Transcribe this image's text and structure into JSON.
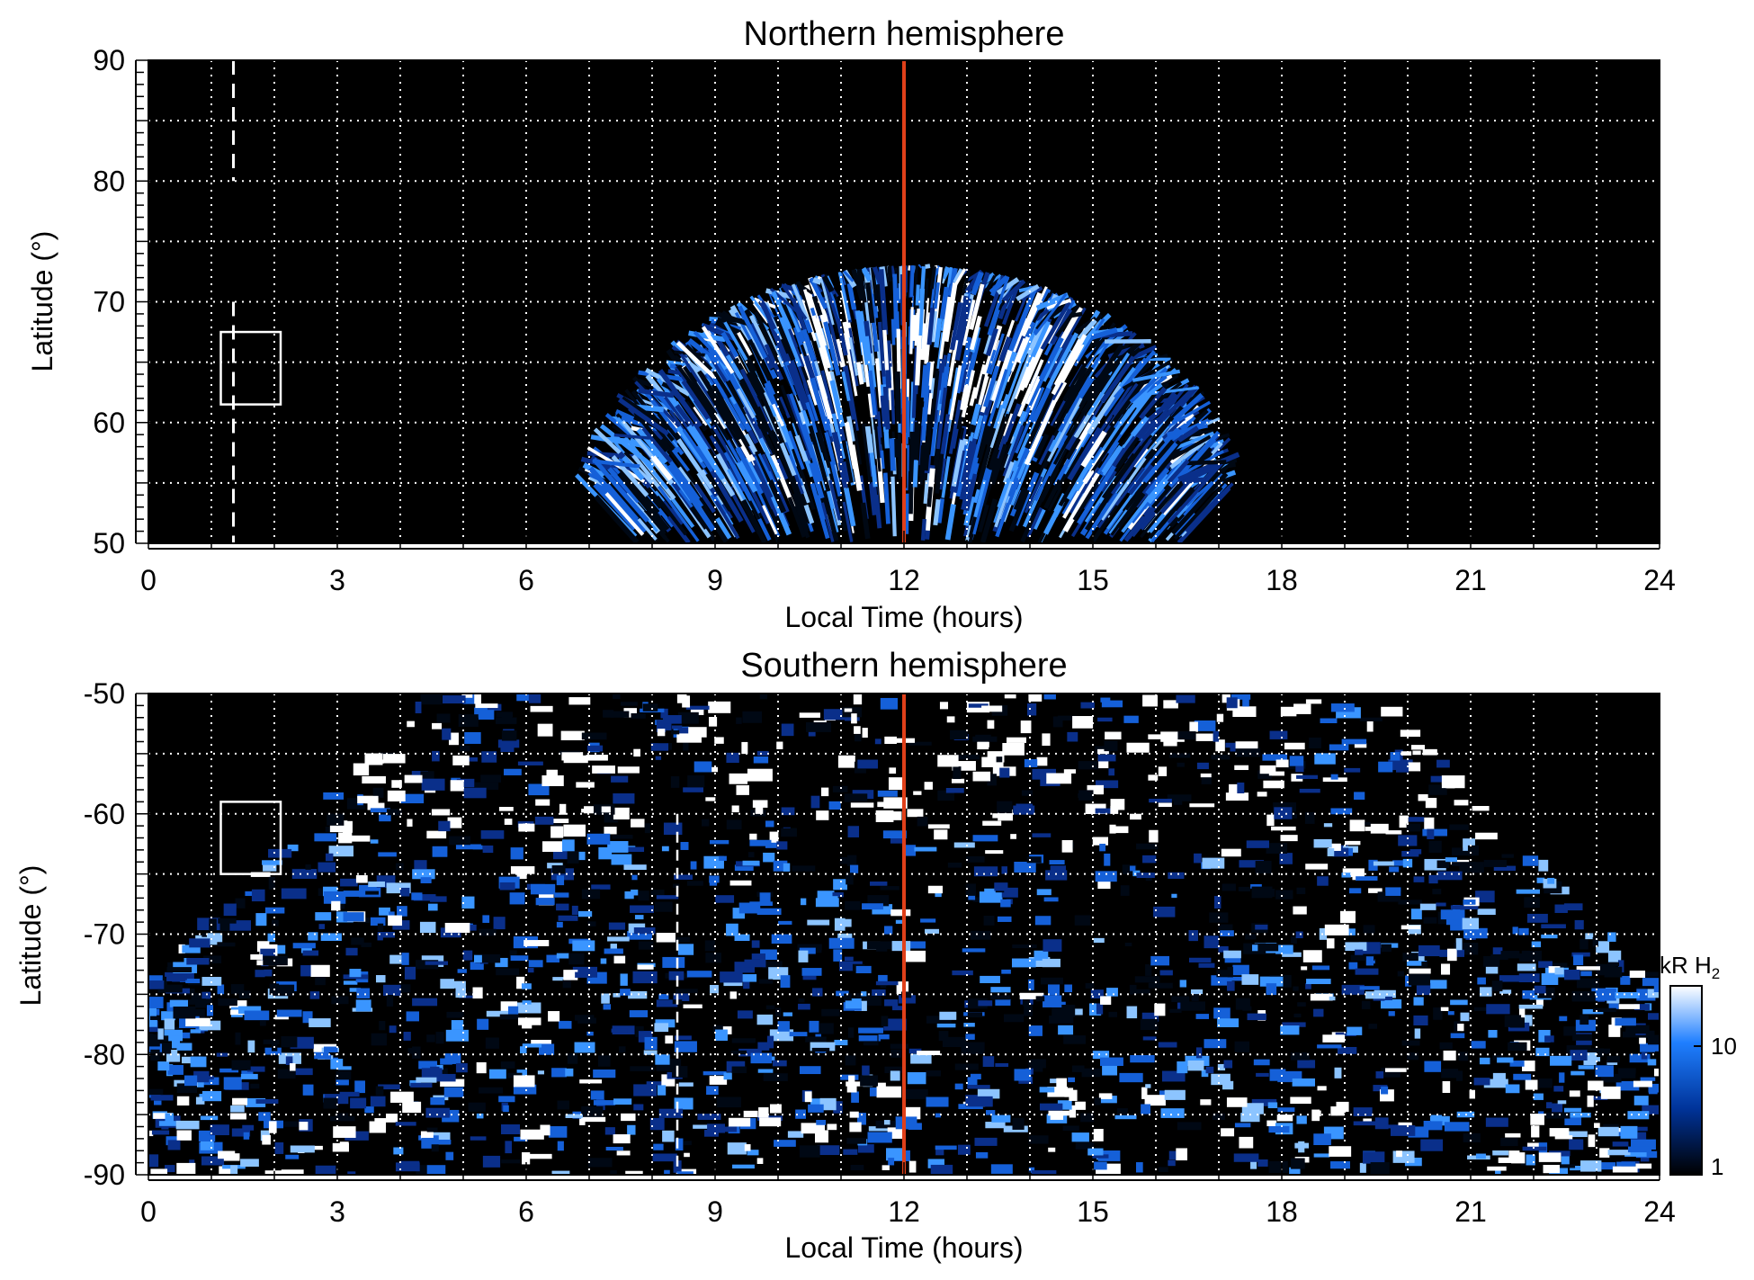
{
  "figure": {
    "colorbar": {
      "unit_label": "kR H",
      "unit_subscript": "2",
      "tick_labels": [
        "1",
        "10"
      ],
      "scale": "log",
      "colors": [
        "#000000",
        "#003399",
        "#1f7fff",
        "#ffffff"
      ]
    },
    "accent_color": "#e0401a"
  },
  "chart_data": [
    {
      "type": "heatmap",
      "title": "Northern hemisphere",
      "xlabel": "Local Time (hours)",
      "ylabel": "Latitude (°)",
      "xlim": [
        0,
        24
      ],
      "ylim": [
        50,
        90
      ],
      "x_ticks": [
        "0",
        "3",
        "6",
        "9",
        "12",
        "15",
        "18",
        "21",
        "24"
      ],
      "y_ticks": [
        "50",
        "60",
        "70",
        "80",
        "90"
      ],
      "grid": true,
      "noon_line_x": 12,
      "dashed_line_x": 1.35,
      "box": {
        "x": [
          1.15,
          2.1
        ],
        "y": [
          61.5,
          67.5
        ]
      },
      "emission_extent": "dome from about 7.6 h to 16.6 h local time, reaching up to about 73° latitude"
    },
    {
      "type": "heatmap",
      "title": "Southern hemisphere",
      "xlabel": "Local Time (hours)",
      "ylabel": "Latitude (°)",
      "xlim": [
        0,
        24
      ],
      "ylim": [
        -90,
        -50
      ],
      "x_ticks": [
        "0",
        "3",
        "6",
        "9",
        "12",
        "15",
        "18",
        "21",
        "24"
      ],
      "y_ticks": [
        "-50",
        "-60",
        "-70",
        "-80",
        "-90"
      ],
      "grid": true,
      "noon_line_x": 12,
      "dashed_line_x": 8.4,
      "box": {
        "x": [
          1.15,
          2.1
        ],
        "y": [
          -65,
          -59
        ]
      },
      "emission_extent": "broad fan spanning nearly all local times at polar latitudes, widening toward -90°"
    }
  ]
}
